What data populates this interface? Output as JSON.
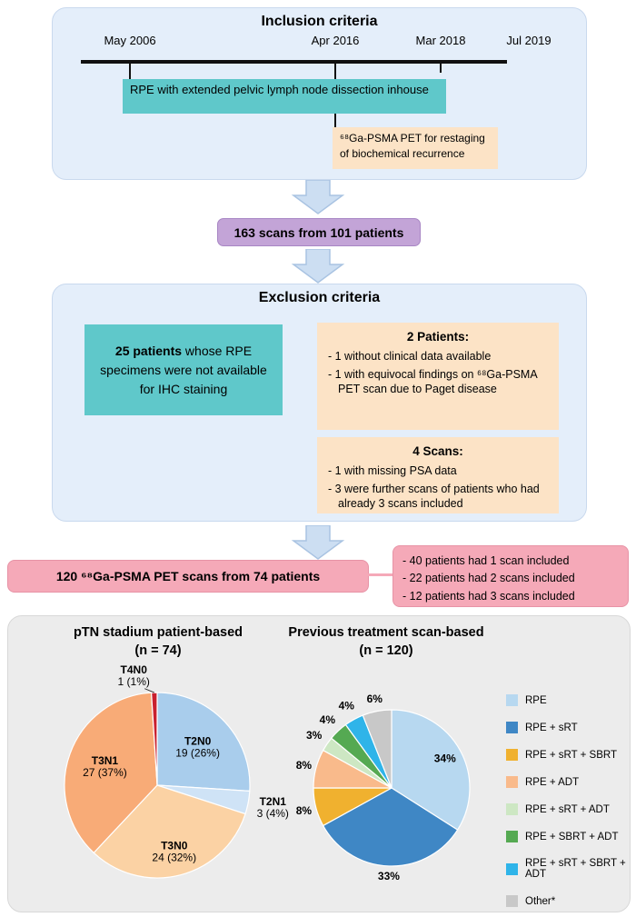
{
  "flow": {
    "inclusion": {
      "title": "Inclusion criteria",
      "dates": [
        "May 2006",
        "Apr 2016",
        "Mar 2018",
        "Jul 2019"
      ],
      "rpe_box": "RPE with extended pelvic lymph node dissection inhouse",
      "pet_box": "⁶⁸Ga-PSMA PET for restaging of biochemical recurrence"
    },
    "scans_total": "163 scans from 101 patients",
    "exclusion": {
      "title": "Exclusion criteria",
      "ihc": {
        "bold": "25 patients",
        "rest": " whose RPE specimens were not available for IHC staining"
      },
      "patients": {
        "title": "2 Patients:",
        "items": [
          "- 1 without clinical data available",
          "- 1 with equivocal findings on ⁶⁸Ga-PSMA PET scan due to Paget disease"
        ]
      },
      "scans": {
        "title": "4 Scans:",
        "items": [
          "- 1 with missing PSA data",
          "- 3 were further scans of patients who had already 3 scans included"
        ]
      }
    },
    "result": "120 ⁶⁸Ga-PSMA PET scans from 74 patients",
    "scan_counts": [
      "- 40 patients had 1 scan included",
      "- 22 patients had 2 scans included",
      "- 12 patients had 3 scans included"
    ]
  },
  "chart_data": [
    {
      "type": "pie",
      "title": "pTN stadium patient-based",
      "subtitle": "(n = 74)",
      "total": 74,
      "legend_position": "none",
      "label_size": 12,
      "slices": [
        {
          "label": "T2N0",
          "count": 19,
          "value": 26,
          "color": "#a9cdec",
          "lines": [
            "T2N0",
            "19 (26%)"
          ],
          "label_r": 0.6
        },
        {
          "label": "T2N1",
          "count": 3,
          "value": 4,
          "color": "#cfe3f6",
          "lines": [
            "T2N1",
            "3 (4%)"
          ],
          "label_r": 1.27
        },
        {
          "label": "T3N0",
          "count": 24,
          "value": 32,
          "color": "#fbd2a4",
          "lines": [
            "T3N0",
            "24 (32%)"
          ],
          "label_r": 0.74
        },
        {
          "label": "T3N1",
          "count": 27,
          "value": 37,
          "color": "#f8ab77",
          "lines": [
            "T3N1",
            "27 (37%)"
          ],
          "label_r": 0.6
        },
        {
          "label": "T4N0",
          "count": 1,
          "value": 1,
          "color": "#c9202e",
          "lines": [
            "T4N0",
            "1 (1%)"
          ],
          "label_r": 1.18,
          "label_dx": -22,
          "leader": true
        }
      ]
    },
    {
      "type": "pie",
      "title": "Previous treatment scan-based",
      "subtitle": "(n = 120)",
      "total": 120,
      "legend_position": "right",
      "label_size": 12,
      "bold_labels": true,
      "slices": [
        {
          "label": "RPE",
          "value": 34,
          "color": "#b7d8f0",
          "lines": [
            "34%"
          ],
          "label_r": 0.78
        },
        {
          "label": "RPE + sRT",
          "value": 33,
          "color": "#3f87c5",
          "lines": [
            "33%"
          ],
          "label_r": 1.13
        },
        {
          "label": "RPE + sRT + SBRT",
          "value": 8,
          "color": "#f0b12f",
          "lines": [
            "8%"
          ],
          "label_r": 1.16
        },
        {
          "label": "RPE + ADT",
          "value": 8,
          "color": "#f9ba8b",
          "lines": [
            "8%"
          ],
          "label_r": 1.16
        },
        {
          "label": "RPE + sRT + ADT",
          "value": 3,
          "color": "#cde7c3",
          "lines": [
            "3%"
          ],
          "label_r": 1.2
        },
        {
          "label": "RPE + SBRT + ADT",
          "value": 4,
          "color": "#55a952",
          "lines": [
            "4%"
          ],
          "label_r": 1.2
        },
        {
          "label": "RPE + sRT + SBRT + ADT",
          "value": 4,
          "color": "#2fb4e9",
          "lines": [
            "4%"
          ],
          "label_r": 1.2
        },
        {
          "label": "Other*",
          "value": 6,
          "color": "#c8c8c8",
          "lines": [
            "6%"
          ],
          "label_r": 1.16
        }
      ]
    }
  ]
}
